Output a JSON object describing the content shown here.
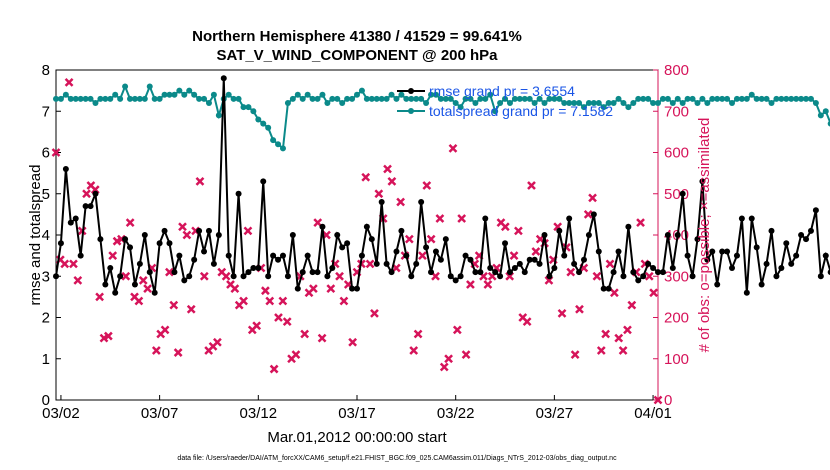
{
  "title_line1": "Northern Hemisphere 41380 / 41529 = 99.641%",
  "title_line2": "SAT_V_WIND_COMPONENT @ 200 hPa",
  "xlabel": "Mar.01,2012 00:00:00 start",
  "footer": "data file: /Users/raeder/DAI/ATM_forcXX/CAM6_setup/f.e21.FHIST_BGC.f09_025.CAM6assim.011/Diags_NTrS_2012-03/obs_diag_output.nc",
  "colors": {
    "rmse": "#000000",
    "spread": "#0b8a8a",
    "obs": "#d6145a",
    "legend_text": "#1a55e6"
  },
  "chart_data": {
    "type": "line",
    "title": "Northern Hemisphere 41380 / 41529 = 99.641%",
    "subtitle": "SAT_V_WIND_COMPONENT @ 200 hPa",
    "xlabel": "Mar.01,2012 00:00:00 start",
    "ylabel": "rmse and totalspread",
    "y2label": "# of obs: o=possible; ×=assimilated",
    "x_ticks": [
      1,
      6,
      11,
      16,
      21,
      26,
      31
    ],
    "x_ticklabels": [
      "03/02",
      "03/07",
      "03/12",
      "03/17",
      "03/22",
      "03/27",
      "04/01"
    ],
    "xlim": [
      0.75,
      31.25
    ],
    "ylim": [
      0,
      8
    ],
    "y_ticks": [
      0,
      1,
      2,
      3,
      4,
      5,
      6,
      7,
      8
    ],
    "y2lim": [
      0,
      800
    ],
    "y2_ticks": [
      0,
      100,
      200,
      300,
      400,
      500,
      600,
      700,
      800
    ],
    "legend": [
      "rmse grand pr = 3.6554",
      "totalspread grand pr = 7.1582"
    ],
    "legend_position": "top-right",
    "grid": false,
    "time_step_days": 0.25,
    "series": [
      {
        "name": "rmse grand pr = 3.6554",
        "axis": "left",
        "values": [
          3.0,
          3.8,
          5.6,
          4.3,
          4.4,
          3.5,
          4.7,
          4.7,
          5.0,
          3.9,
          2.8,
          3.2,
          2.6,
          3.0,
          3.9,
          3.7,
          2.8,
          3.3,
          4.0,
          3.1,
          2.6,
          3.8,
          4.1,
          3.8,
          3.1,
          3.5,
          2.9,
          3.0,
          3.4,
          4.1,
          3.6,
          4.1,
          3.3,
          4.0,
          7.8,
          3.5,
          3.0,
          5.0,
          3.0,
          3.1,
          3.2,
          3.2,
          5.3,
          3.0,
          3.5,
          3.4,
          3.5,
          3.0,
          4.0,
          2.7,
          3.1,
          3.5,
          3.1,
          3.1,
          4.2,
          3.0,
          3.2,
          4.0,
          3.7,
          3.8,
          2.7,
          2.7,
          3.5,
          4.2,
          3.9,
          3.3,
          4.8,
          3.3,
          3.1,
          3.6,
          4.1,
          3.5,
          3.0,
          3.3,
          4.8,
          3.7,
          3.1,
          3.6,
          3.4,
          3.9,
          3.0,
          2.9,
          3.0,
          3.5,
          3.4,
          3.1,
          3.1,
          4.4,
          3.2,
          3.1,
          3.0,
          3.8,
          3.1,
          3.2,
          3.3,
          3.1,
          3.4,
          3.4,
          3.3,
          4.0,
          3.0,
          3.2,
          4.1,
          3.5,
          4.4,
          3.3,
          3.1,
          3.4,
          4.0,
          4.5,
          3.6,
          2.7,
          2.7,
          3.1,
          3.6,
          3.0,
          4.2,
          3.1,
          2.9,
          3.0,
          3.3,
          3.2,
          3.1,
          3.1,
          4.0,
          3.2,
          4.0,
          5.0,
          3.5,
          3.0,
          3.9,
          5.3,
          3.4,
          3.6,
          2.8,
          3.6,
          3.6,
          3.2,
          3.5,
          4.4,
          2.6,
          4.4,
          3.7,
          2.8,
          3.3,
          4.1,
          3.0,
          3.2,
          3.8,
          3.3,
          3.5,
          4.0,
          3.9,
          4.1,
          4.6,
          3.0,
          3.5,
          3.1,
          3.1,
          3.1,
          2.9,
          2.7,
          3.0,
          2.9,
          3.3
        ]
      },
      {
        "name": "totalspread grand pr = 7.1582",
        "axis": "left",
        "values": [
          7.3,
          7.3,
          7.4,
          7.3,
          7.3,
          7.3,
          7.3,
          7.3,
          7.2,
          7.3,
          7.3,
          7.3,
          7.4,
          7.3,
          7.6,
          7.3,
          7.3,
          7.3,
          7.3,
          7.6,
          7.3,
          7.3,
          7.4,
          7.4,
          7.4,
          7.5,
          7.4,
          7.5,
          7.4,
          7.3,
          7.3,
          7.2,
          7.4,
          6.9,
          7.3,
          7.4,
          7.3,
          7.3,
          7.1,
          7.1,
          7.0,
          6.8,
          6.7,
          6.6,
          6.3,
          6.2,
          6.1,
          7.2,
          7.3,
          7.4,
          7.3,
          7.4,
          7.3,
          7.3,
          7.4,
          7.2,
          7.3,
          7.3,
          7.2,
          7.3,
          7.3,
          7.4,
          7.5,
          7.3,
          7.3,
          7.3,
          7.3,
          7.3,
          7.4,
          7.3,
          7.4,
          7.3,
          7.3,
          7.3,
          7.3,
          7.2,
          7.4,
          7.4,
          7.3,
          7.3,
          7.3,
          7.2,
          7.1,
          7.3,
          7.3,
          7.2,
          7.3,
          7.3,
          7.4,
          7.0,
          7.2,
          7.3,
          7.2,
          7.3,
          7.3,
          7.3,
          7.3,
          7.2,
          7.3,
          7.2,
          7.3,
          7.3,
          7.3,
          7.2,
          7.2,
          7.2,
          7.2,
          7.1,
          7.2,
          7.2,
          7.2,
          7.1,
          7.2,
          7.2,
          7.3,
          7.2,
          7.1,
          7.2,
          7.3,
          7.3,
          7.3,
          7.2,
          7.2,
          7.3,
          7.3,
          7.2,
          7.3,
          7.2,
          7.3,
          7.3,
          7.2,
          7.3,
          7.2,
          7.3,
          7.3,
          7.3,
          7.3,
          7.2,
          7.3,
          7.3,
          7.3,
          7.4,
          7.3,
          7.3,
          7.3,
          7.2,
          7.3,
          7.3,
          7.3,
          7.3,
          7.3,
          7.3,
          7.3,
          7.3,
          7.2,
          6.9,
          7.0,
          6.7,
          6.5,
          6.4,
          6.7,
          6.7,
          6.8,
          6.7,
          7.2,
          7.2,
          7.2
        ]
      },
      {
        "name": "",
        "axis": "right",
        "marker": "x",
        "values": [
          600,
          340,
          330,
          770,
          330,
          290,
          410,
          500,
          520,
          510,
          250,
          150,
          155,
          350,
          385,
          390,
          300,
          430,
          250,
          240,
          290,
          270,
          320,
          120,
          160,
          170,
          310,
          230,
          115,
          420,
          400,
          220,
          410,
          530,
          300,
          120,
          130,
          140,
          310,
          300,
          280,
          270,
          230,
          240,
          410,
          170,
          180,
          320,
          265,
          240,
          75,
          200,
          240,
          190,
          100,
          110,
          300,
          160,
          260,
          270,
          430,
          150,
          400,
          270,
          330,
          300,
          240,
          280,
          140,
          310,
          330,
          540,
          330,
          210,
          500,
          440,
          560,
          530,
          320,
          480,
          350,
          390,
          120,
          160,
          350,
          520,
          390,
          300,
          440,
          80,
          100,
          610,
          170,
          440,
          110,
          280,
          330,
          350,
          300,
          280,
          300,
          320,
          430,
          420,
          300,
          350,
          410,
          200,
          190,
          520,
          360,
          390,
          380,
          290,
          340,
          420,
          210,
          370,
          310,
          110,
          220,
          320,
          450,
          490,
          300,
          120,
          160,
          330,
          260,
          150,
          120,
          170,
          230,
          310,
          430,
          330,
          300,
          260,
          0
        ]
      }
    ]
  }
}
